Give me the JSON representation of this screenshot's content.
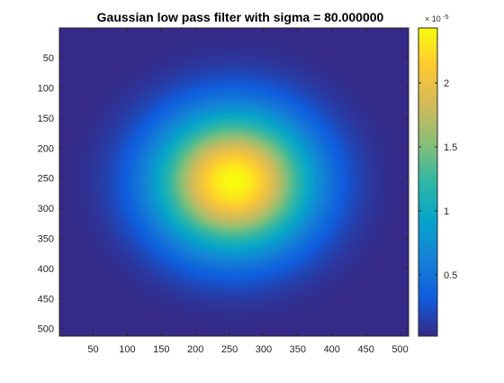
{
  "chart_data": {
    "type": "heatmap",
    "title": "Gaussian low pass filter with sigma = 80.000000",
    "xlabel": "",
    "ylabel": "",
    "image_size": [
      512,
      512
    ],
    "center": [
      256,
      256
    ],
    "sigma": 80,
    "peak_value": 2.43e-05,
    "xlim": [
      0.5,
      512.5
    ],
    "ylim": [
      0.5,
      512.5
    ],
    "y_direction": "reverse",
    "x_ticks": [
      50,
      100,
      150,
      200,
      250,
      300,
      350,
      400,
      450,
      500
    ],
    "x_tick_labels": [
      "50",
      "100",
      "150",
      "200",
      "250",
      "300",
      "350",
      "400",
      "450",
      "500"
    ],
    "y_ticks": [
      50,
      100,
      150,
      200,
      250,
      300,
      350,
      400,
      450,
      500
    ],
    "y_tick_labels": [
      "50",
      "100",
      "150",
      "200",
      "250",
      "300",
      "350",
      "400",
      "450",
      "500"
    ],
    "colorbar": {
      "colormap": "parula",
      "clim": [
        2e-07,
        2.43e-05
      ],
      "exponent_label_base": "× 10",
      "exponent_label_power": "-5",
      "tick_values": [
        5e-06,
        1e-05,
        1.5e-05,
        2e-05
      ],
      "tick_labels": [
        "0.5",
        "1",
        "1.5",
        "2"
      ]
    },
    "grid": false,
    "legend": "none",
    "colors": {
      "parula_low": "#352a87",
      "parula_blue": "#0f5cdd",
      "parula_mid_blue": "#1481d6",
      "parula_teal": "#06a4ca",
      "parula_cyan_green": "#2eb7a4",
      "parula_green": "#87bf77",
      "parula_orange": "#d1bb59",
      "parula_amber": "#fec832",
      "parula_high": "#f9fb0e",
      "axis_line": "#262626",
      "tick_text": "#262626"
    }
  }
}
